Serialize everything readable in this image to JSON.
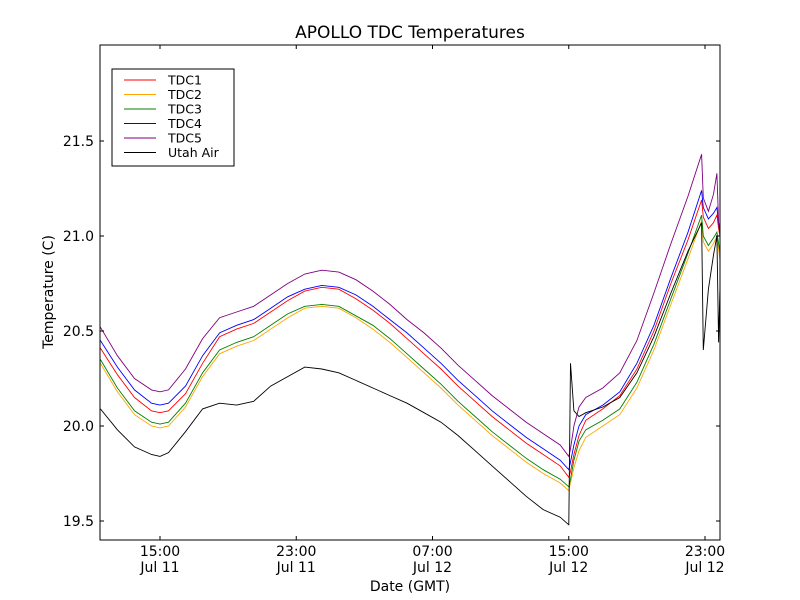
{
  "chart_data": {
    "type": "line",
    "title": "APOLLO TDC Temperatures",
    "xlabel": "Date (GMT)",
    "ylabel": "Temperature (C)",
    "x_units": "hours since 00:00 Jul 11 (GMT)",
    "xlim": [
      11.5,
      47.9
    ],
    "ylim": [
      19.4,
      22.0
    ],
    "grid": false,
    "legend_position": "top-left",
    "xticks": [
      {
        "value": 15,
        "label_time": "15:00",
        "label_date": "Jul 11"
      },
      {
        "value": 23,
        "label_time": "23:00",
        "label_date": "Jul 11"
      },
      {
        "value": 31,
        "label_time": "07:00",
        "label_date": "Jul 12"
      },
      {
        "value": 39,
        "label_time": "15:00",
        "label_date": "Jul 12"
      },
      {
        "value": 47,
        "label_time": "23:00",
        "label_date": "Jul 12"
      }
    ],
    "yticks": [
      {
        "value": 19.5,
        "label": "19.5"
      },
      {
        "value": 20.0,
        "label": "20.0"
      },
      {
        "value": 20.5,
        "label": "20.5"
      },
      {
        "value": 21.0,
        "label": "21.0"
      },
      {
        "value": 21.5,
        "label": "21.5"
      }
    ],
    "x": [
      11.5,
      12.5,
      13.5,
      14.5,
      15.0,
      15.5,
      16.5,
      17.5,
      18.5,
      19.5,
      20.5,
      21.5,
      22.5,
      23.5,
      24.5,
      25.5,
      26.5,
      27.5,
      28.5,
      29.5,
      30.5,
      31.5,
      32.5,
      33.5,
      34.5,
      35.5,
      36.5,
      37.5,
      38.5,
      39.0,
      39.1,
      39.3,
      39.6,
      40.0,
      41.0,
      42.0,
      43.0,
      44.0,
      45.0,
      46.0,
      46.8,
      46.9,
      47.2,
      47.5,
      47.7,
      47.8,
      47.9
    ],
    "series": [
      {
        "name": "TDC1",
        "color": "#ff0000",
        "values": [
          20.41,
          20.27,
          20.15,
          20.08,
          20.07,
          20.08,
          20.17,
          20.33,
          20.47,
          20.51,
          20.54,
          20.6,
          20.66,
          20.71,
          20.73,
          20.72,
          20.67,
          20.61,
          20.54,
          20.46,
          20.38,
          20.3,
          20.21,
          20.13,
          20.05,
          19.98,
          19.91,
          19.85,
          19.79,
          19.73,
          19.76,
          19.85,
          19.95,
          20.03,
          20.09,
          20.16,
          20.3,
          20.5,
          20.75,
          20.98,
          21.19,
          21.1,
          21.04,
          21.07,
          21.11,
          21.04,
          20.99
        ]
      },
      {
        "name": "TDC2",
        "color": "#ffa500",
        "values": [
          20.33,
          20.18,
          20.06,
          20.0,
          19.99,
          20.0,
          20.1,
          20.26,
          20.38,
          20.42,
          20.45,
          20.51,
          20.57,
          20.62,
          20.63,
          20.62,
          20.57,
          20.51,
          20.44,
          20.36,
          20.28,
          20.2,
          20.11,
          20.03,
          19.95,
          19.88,
          19.81,
          19.75,
          19.7,
          19.66,
          19.7,
          19.78,
          19.87,
          19.94,
          20.0,
          20.06,
          20.2,
          20.4,
          20.64,
          20.88,
          21.08,
          20.97,
          20.92,
          20.96,
          21.0,
          20.93,
          20.86
        ]
      },
      {
        "name": "TDC3",
        "color": "#008000",
        "values": [
          20.35,
          20.2,
          20.08,
          20.02,
          20.01,
          20.02,
          20.12,
          20.28,
          20.4,
          20.44,
          20.47,
          20.53,
          20.59,
          20.63,
          20.64,
          20.63,
          20.58,
          20.53,
          20.46,
          20.38,
          20.3,
          20.22,
          20.13,
          20.05,
          19.97,
          19.9,
          19.83,
          19.77,
          19.72,
          19.68,
          19.72,
          19.82,
          19.92,
          19.98,
          20.03,
          20.09,
          20.23,
          20.43,
          20.67,
          20.91,
          21.11,
          21.0,
          20.95,
          20.99,
          21.02,
          20.96,
          20.9
        ]
      },
      {
        "name": "TDC4",
        "color": "#0000ff",
        "values": [
          20.45,
          20.31,
          20.19,
          20.12,
          20.11,
          20.12,
          20.21,
          20.37,
          20.49,
          20.53,
          20.56,
          20.62,
          20.68,
          20.72,
          20.74,
          20.73,
          20.69,
          20.63,
          20.56,
          20.49,
          20.41,
          20.33,
          20.24,
          20.16,
          20.08,
          20.01,
          19.94,
          19.88,
          19.82,
          19.77,
          19.81,
          19.9,
          20.0,
          20.06,
          20.11,
          20.18,
          20.33,
          20.53,
          20.78,
          21.02,
          21.24,
          21.15,
          21.09,
          21.12,
          21.15,
          21.07,
          21.0
        ]
      },
      {
        "name": "TDC5",
        "color": "#800080",
        "values": [
          20.52,
          20.37,
          20.25,
          20.19,
          20.18,
          20.19,
          20.3,
          20.46,
          20.57,
          20.6,
          20.63,
          20.69,
          20.75,
          20.8,
          20.82,
          20.81,
          20.77,
          20.71,
          20.64,
          20.56,
          20.49,
          20.41,
          20.32,
          20.24,
          20.16,
          20.09,
          20.02,
          19.96,
          19.9,
          19.84,
          19.88,
          20.0,
          20.1,
          20.15,
          20.2,
          20.28,
          20.45,
          20.7,
          20.96,
          21.21,
          21.43,
          21.2,
          21.13,
          21.22,
          21.33,
          21.07,
          21.0
        ]
      },
      {
        "name": "Utah Air",
        "color": "#000000",
        "values": [
          20.09,
          19.98,
          19.89,
          19.85,
          19.84,
          19.86,
          19.97,
          20.09,
          20.12,
          20.11,
          20.13,
          20.21,
          20.26,
          20.31,
          20.3,
          20.28,
          20.24,
          20.2,
          20.16,
          20.12,
          20.07,
          20.02,
          19.95,
          19.87,
          19.79,
          19.71,
          19.63,
          19.56,
          19.52,
          19.48,
          20.33,
          20.08,
          20.05,
          20.07,
          20.1,
          20.15,
          20.28,
          20.47,
          20.7,
          20.92,
          21.07,
          20.4,
          20.72,
          20.9,
          21.0,
          20.44,
          20.8
        ]
      }
    ]
  }
}
